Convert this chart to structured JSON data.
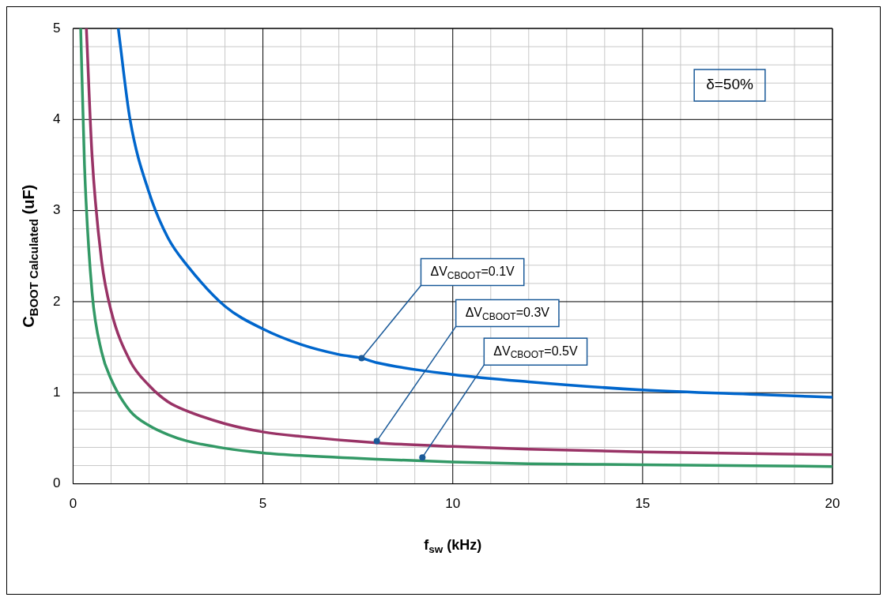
{
  "chart_data": {
    "type": "line",
    "xlabel": "f$_{sw}$ (kHz)",
    "ylabel": "C$_{BOOT Calculated}$ (uF)",
    "xlim": [
      0,
      20
    ],
    "xticks": [
      0,
      5,
      10,
      15,
      20
    ],
    "ylim": [
      0,
      5
    ],
    "yticks": [
      0,
      1,
      2,
      3,
      4,
      5
    ],
    "grid": true,
    "legend": false,
    "marker": "none",
    "line_style": "solid",
    "series": [
      {
        "color": "#0066cc",
        "x": [
          1.19,
          1.5,
          2,
          2.5,
          3,
          4,
          5,
          6,
          7,
          7.6,
          8,
          10,
          12,
          15,
          18,
          20
        ],
        "values": [
          5,
          4.0,
          3.2,
          2.7,
          2.4,
          1.95,
          1.7,
          1.53,
          1.42,
          1.38,
          1.33,
          1.2,
          1.12,
          1.03,
          0.98,
          0.95
        ]
      },
      {
        "color": "#993366",
        "x": [
          0.35,
          0.5,
          0.75,
          1,
          1.5,
          2,
          2.5,
          3,
          4,
          5,
          6,
          8,
          10,
          12,
          15,
          20
        ],
        "values": [
          5,
          3.6,
          2.45,
          1.9,
          1.35,
          1.08,
          0.9,
          0.8,
          0.66,
          0.57,
          0.52,
          0.45,
          0.41,
          0.38,
          0.35,
          0.32
        ]
      },
      {
        "color": "#339966",
        "x": [
          0.2,
          0.3,
          0.5,
          0.75,
          1,
          1.5,
          2,
          2.5,
          3,
          4,
          5,
          6,
          8,
          10,
          12,
          15,
          20
        ],
        "values": [
          5,
          3.5,
          2.1,
          1.45,
          1.15,
          0.8,
          0.64,
          0.54,
          0.47,
          0.39,
          0.34,
          0.31,
          0.27,
          0.24,
          0.22,
          0.21,
          0.19
        ]
      }
    ],
    "annotations": [
      {
        "text": "ΔV$_{CBOOT}$=0.1V",
        "x": 7.6,
        "y": 1.38
      },
      {
        "text": "ΔV$_{CBOOT}$=0.3V",
        "x": 8,
        "y": 0.47
      },
      {
        "text": "ΔV$_{CBOOT}$=0.5V",
        "x": 9.2,
        "y": 0.29
      },
      "δ=50%"
    ]
  }
}
